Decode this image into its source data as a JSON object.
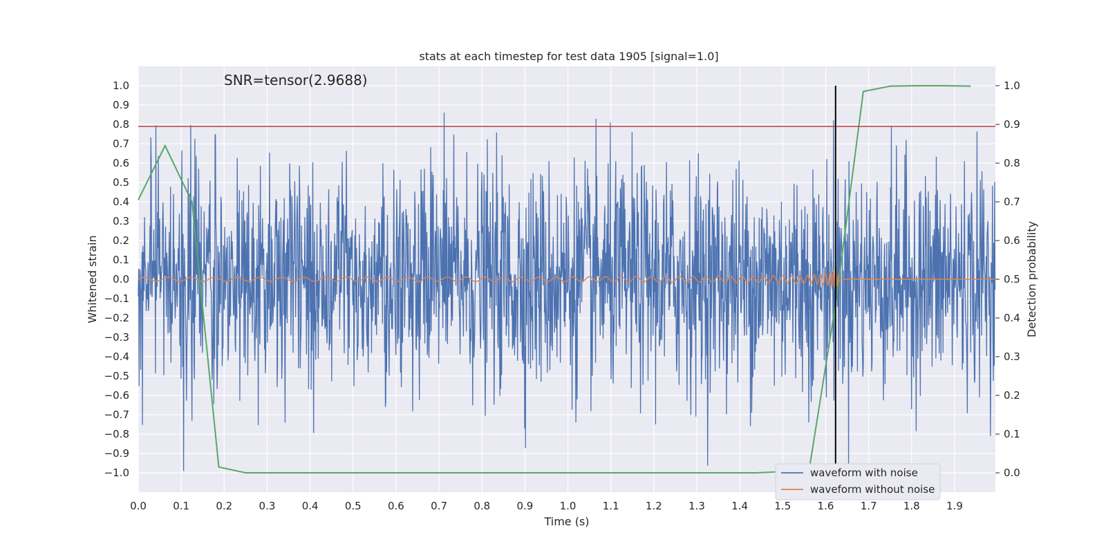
{
  "chart_data": {
    "type": "line",
    "title": "stats at each timestep for test data 1905 [signal=1.0]",
    "xlabel": "Time (s)",
    "ylabel": "Whitened strain",
    "y2label": "Detection probability",
    "annotation": "SNR=tensor(2.9688)",
    "xlim": [
      0.0,
      1.995
    ],
    "ylim": [
      -1.1,
      1.1
    ],
    "y2lim": [
      -0.05,
      1.05
    ],
    "xticks": [
      "0.0",
      "0.1",
      "0.2",
      "0.3",
      "0.4",
      "0.5",
      "0.6",
      "0.7",
      "0.8",
      "0.9",
      "1.0",
      "1.1",
      "1.2",
      "1.3",
      "1.4",
      "1.5",
      "1.6",
      "1.7",
      "1.8",
      "1.9"
    ],
    "yticks": [
      "1.0",
      "0.9",
      "0.8",
      "0.7",
      "0.6",
      "0.5",
      "0.4",
      "0.3",
      "0.2",
      "0.1",
      "0.0",
      "−0.1",
      "−0.2",
      "−0.3",
      "−0.4",
      "−0.5",
      "−0.6",
      "−0.7",
      "−0.8",
      "−0.9",
      "−1.0"
    ],
    "y2ticks": [
      "1.0",
      "0.9",
      "0.8",
      "0.7",
      "0.6",
      "0.5",
      "0.4",
      "0.3",
      "0.2",
      "0.1",
      "0.0"
    ],
    "grid": true,
    "legend_position": "bottom-right",
    "threshold_line": {
      "y": 0.79,
      "color": "#c44e52"
    },
    "event_line": {
      "x": 1.623,
      "color": "#000000"
    },
    "series": [
      {
        "name": "waveform with noise",
        "color": "#4c72b0",
        "description_values": "random noise, amplitude range approx -1.0 to 1.0"
      },
      {
        "name": "waveform without noise",
        "color": "#dd8452",
        "chirp_peak_time": 1.623,
        "chirp_peak_amplitude": 0.17
      },
      {
        "color": "#55a868",
        "axis": "right",
        "x": [
          0.0,
          0.0625,
          0.125,
          0.1875,
          0.25,
          0.3125,
          0.5,
          1.0,
          1.4375,
          1.5,
          1.5625,
          1.625,
          1.6875,
          1.75,
          1.8125,
          1.875,
          1.9375
        ],
        "values": [
          0.705,
          0.845,
          0.7,
          0.015,
          0.0,
          0.0,
          0.0,
          0.0,
          0.0,
          0.003,
          0.015,
          0.45,
          0.985,
          0.999,
          1.0,
          1.0,
          0.999
        ]
      }
    ]
  }
}
